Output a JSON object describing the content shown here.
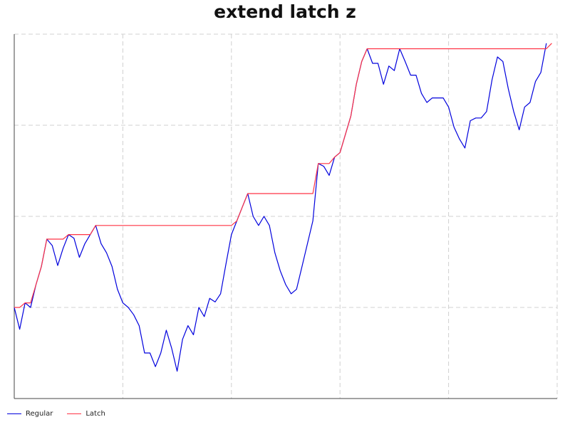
{
  "chart_data": {
    "type": "line",
    "title": "extend latch z",
    "xlabel": "",
    "ylabel": "",
    "grid": true,
    "legend_position": "bottom-left",
    "x": [
      0,
      1,
      2,
      3,
      4,
      5,
      6,
      7,
      8,
      9,
      10,
      11,
      12,
      13,
      14,
      15,
      16,
      17,
      18,
      19,
      20,
      21,
      22,
      23,
      24,
      25,
      26,
      27,
      28,
      29,
      30,
      31,
      32,
      33,
      34,
      35,
      36,
      37,
      38,
      39,
      40,
      41,
      42,
      43,
      44,
      45,
      46,
      47,
      48,
      49,
      50,
      51,
      52,
      53,
      54,
      55,
      56,
      57,
      58,
      59,
      60,
      61,
      62,
      63,
      64,
      65,
      66,
      67,
      68,
      69,
      70,
      71,
      72,
      73,
      74,
      75,
      76,
      77,
      78,
      79,
      80,
      81,
      82,
      83,
      84,
      85,
      86,
      87,
      88,
      89,
      90,
      91,
      92,
      93,
      94,
      95,
      96,
      97,
      98,
      99,
      100
    ],
    "xlim": [
      0,
      100
    ],
    "ylim": [
      0,
      400
    ],
    "series": [
      {
        "name": "Regular",
        "color": "#0000dd",
        "values": [
          100,
          76,
          105,
          100,
          125,
          145,
          175,
          168,
          146,
          165,
          180,
          176,
          155,
          170,
          180,
          190,
          170,
          160,
          145,
          120,
          105,
          100,
          92,
          80,
          50,
          50,
          35,
          50,
          75,
          55,
          30,
          65,
          80,
          70,
          100,
          90,
          110,
          106,
          115,
          148,
          180,
          195,
          210,
          225,
          200,
          190,
          200,
          190,
          160,
          140,
          125,
          115,
          120,
          145,
          170,
          195,
          258,
          255,
          245,
          265,
          270,
          290,
          310,
          345,
          370,
          384,
          368,
          368,
          345,
          365,
          360,
          384,
          370,
          355,
          355,
          335,
          325,
          330,
          330,
          330,
          320,
          298,
          285,
          275,
          305,
          308,
          308,
          315,
          350,
          375,
          370,
          340,
          315,
          295,
          320,
          325,
          348,
          358,
          390,
          null,
          null
        ],
        "values_note": ""
      },
      {
        "name": "Latch",
        "color": "#ff3344",
        "values": [
          100,
          100,
          105,
          105,
          125,
          145,
          175,
          175,
          175,
          175,
          180,
          180,
          180,
          180,
          180,
          190,
          190,
          190,
          190,
          190,
          190,
          190,
          190,
          190,
          190,
          190,
          190,
          190,
          190,
          190,
          190,
          190,
          190,
          190,
          190,
          190,
          190,
          190,
          190,
          190,
          190,
          195,
          210,
          225,
          225,
          225,
          225,
          225,
          225,
          225,
          225,
          225,
          225,
          225,
          225,
          225,
          258,
          258,
          258,
          265,
          270,
          290,
          310,
          345,
          370,
          384,
          384,
          384,
          384,
          384,
          384,
          384,
          384,
          384,
          384,
          384,
          384,
          384,
          384,
          384,
          384,
          384,
          384,
          384,
          384,
          384,
          384,
          384,
          384,
          384,
          384,
          384,
          384,
          384,
          384,
          384,
          384,
          384,
          384,
          390,
          null
        ],
        "values_note": ""
      }
    ]
  }
}
